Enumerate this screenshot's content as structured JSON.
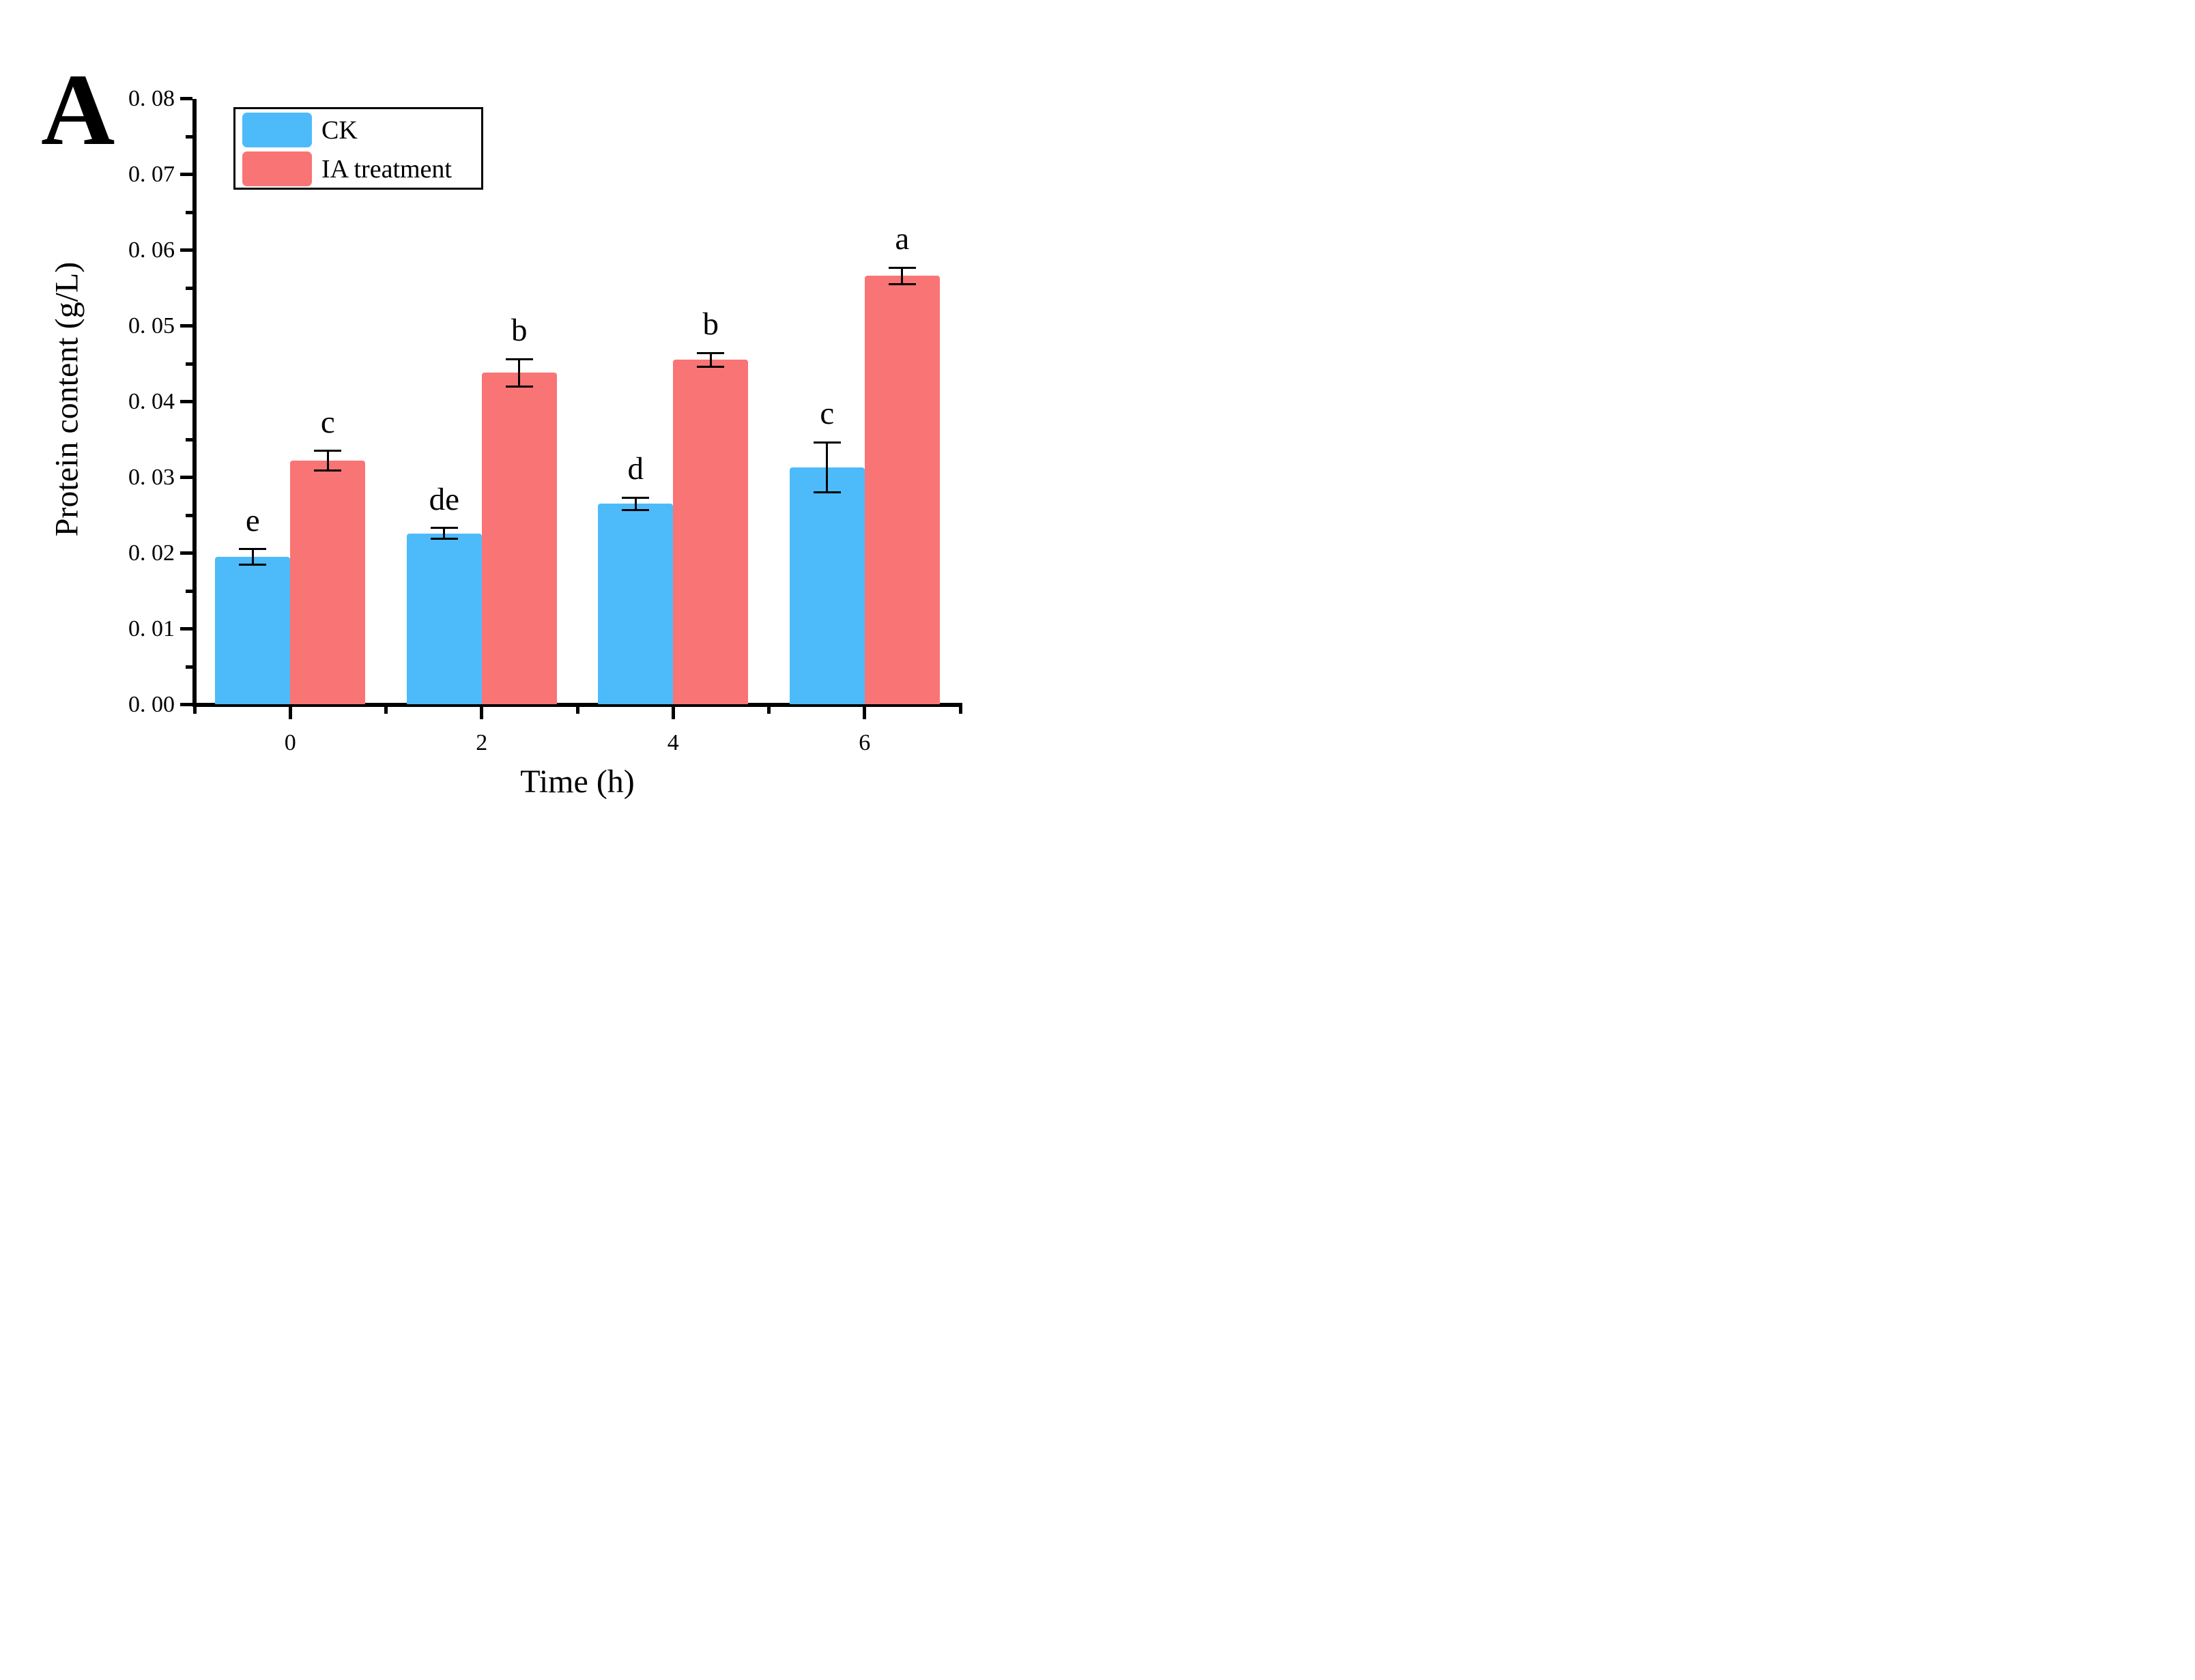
{
  "panel_label": "A",
  "colors": {
    "ck": "#4DBBFA",
    "ia": "#F97474",
    "axis": "#000000",
    "background": "#FFFFFF"
  },
  "legend": {
    "entries": [
      {
        "label": "CK",
        "color_key": "ck"
      },
      {
        "label": "IA treatment",
        "color_key": "ia"
      }
    ]
  },
  "chart_data": {
    "type": "bar",
    "title": "",
    "xlabel": "Time (h)",
    "ylabel": "Protein content (g/L)",
    "categories": [
      0,
      2,
      4,
      6
    ],
    "xtick_labels": [
      "0",
      "2",
      "4",
      "6"
    ],
    "xlim": [
      -1,
      7
    ],
    "xtick_minor_positions": [
      -1,
      1,
      3,
      5,
      7
    ],
    "ylim": [
      0,
      0.08
    ],
    "ytick_step": 0.01,
    "ytick_minor_step": 0.005,
    "ytick_labels": [
      "0. 00",
      "0. 01",
      "0. 02",
      "0. 03",
      "0. 04",
      "0. 05",
      "0. 06",
      "0. 07",
      "0. 08"
    ],
    "grid": false,
    "legend_position": "top-left",
    "bar_width_units": 0.787,
    "series": [
      {
        "name": "CK",
        "color_key": "ck",
        "values": [
          0.0195,
          0.0226,
          0.0265,
          0.0313
        ],
        "errors": [
          0.001,
          0.0007,
          0.0008,
          0.0033
        ],
        "sig_letters": [
          "e",
          "de",
          "d",
          "c"
        ]
      },
      {
        "name": "IA treatment",
        "color_key": "ia",
        "values": [
          0.0322,
          0.0438,
          0.0455,
          0.0566
        ],
        "errors": [
          0.0013,
          0.0018,
          0.0009,
          0.0011
        ],
        "sig_letters": [
          "c",
          "b",
          "b",
          "a"
        ]
      }
    ]
  }
}
